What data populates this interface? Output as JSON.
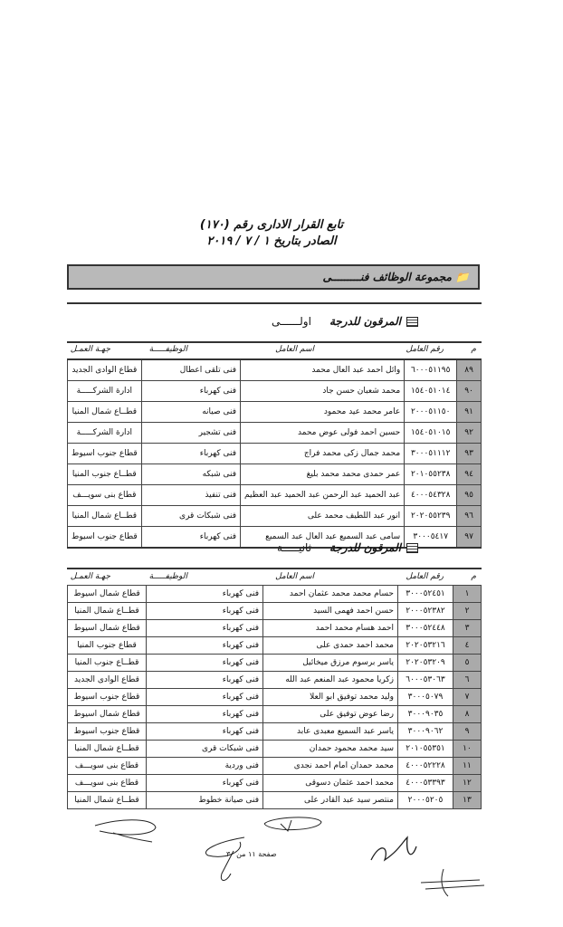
{
  "header": {
    "line1": "تابع القرار الادارى رقم (١٧٠)",
    "line2": "الصادر بتاريخ ١ / ٧ / ٢٠١٩"
  },
  "group_band": {
    "icon": "folder-icon",
    "label": "مجموعة الوظائف فنـــــــــى"
  },
  "columns": {
    "m": "م",
    "number": "رقم العامل",
    "name": "اسم العامل",
    "job": "الوظيفـــــة",
    "dept": "جهـة العمـل"
  },
  "sections": [
    {
      "title": "المرقون للدرجة",
      "grade": "اولــــــى",
      "icon": "list-icon",
      "rows": [
        {
          "m": "٨٩",
          "number": "٦٠٠٠٥١١٩٥",
          "name": "وائل احمد عبد العال محمد",
          "job": "فنى تلقى اعطال",
          "dept": "قطاع الوادى الجديد"
        },
        {
          "m": "٩٠",
          "number": "١٥٤٠٥١٠١٤",
          "name": "محمد شعبان حسن جاد",
          "job": "فنى كهرباء",
          "dept": "ادارة الشركـــــة"
        },
        {
          "m": "٩١",
          "number": "٢٠٠٠٥١١٥٠",
          "name": "عامر محمد عيد محمود",
          "job": "فنى صيانه",
          "dept": "قطــاع شمال المنيا"
        },
        {
          "m": "٩٢",
          "number": "١٥٤٠٥١٠١٥",
          "name": "حسين احمد فولى عوض محمد",
          "job": "فنى تشجير",
          "dept": "ادارة الشركـــــة"
        },
        {
          "m": "٩٣",
          "number": "٣٠٠٠٥١١١٢",
          "name": "محمد جمال زكى محمد فراج",
          "job": "فنى كهرباء",
          "dept": "قطاع جنوب اسيوط"
        },
        {
          "m": "٩٤",
          "number": "٢٠١٠٥٥٢٣٨",
          "name": "عمر حمدى محمد محمد بليغ",
          "job": "فنى شبكه",
          "dept": "قطــاع جنوب المنيا"
        },
        {
          "m": "٩٥",
          "number": "٤٠٠٠٥٤٣٢٨",
          "name": "عبد الحميد عبد الرحمن عبد الحميد عبد العظيم",
          "job": "فنى تنفيذ",
          "dept": "قطاع بنى سويـــف"
        },
        {
          "m": "٩٦",
          "number": "٢٠٢٠٥٥٢٣٩",
          "name": "انور عبد اللطيف محمد على",
          "job": "فنى شبكات قرى",
          "dept": "قطــاع شمال المنيا"
        },
        {
          "m": "٩٧",
          "number": "٣٠٠٠٥٤١٧",
          "name": "سامى عبد السميع عبد العال عبد السميع",
          "job": "فنى كهرباء",
          "dept": "قطاع جنوب اسيوط"
        }
      ]
    },
    {
      "title": "المرقون للدرجة",
      "grade": "ثانيـــــة",
      "icon": "list-icon",
      "rows": [
        {
          "m": "١",
          "number": "٣٠٠٠٥٢٤٥١",
          "name": "حسام محمد محمد عثمان احمد",
          "job": "فنى كهرباء",
          "dept": "قطاع شمال اسيوط"
        },
        {
          "m": "٢",
          "number": "٢٠٠٠٥٢٣٨٢",
          "name": "حسن احمد فهمى السيد",
          "job": "فنى كهرباء",
          "dept": "قطــاع شمال المنيا"
        },
        {
          "m": "٣",
          "number": "٣٠٠٠٥٢٤٤٨",
          "name": "احمد هسام محمد احمد",
          "job": "فنى كهرباء",
          "dept": "قطاع شمال اسيوط"
        },
        {
          "m": "٤",
          "number": "٢٠٢٠٥٣٢١٦",
          "name": "محمد احمد حمدى على",
          "job": "فنى كهرباء",
          "dept": "قطاع جنوب المنيا"
        },
        {
          "m": "٥",
          "number": "٢٠٢٠٥٣٢٠٩",
          "name": "ياسر برسوم مرزق ميخائيل",
          "job": "فنى كهرباء",
          "dept": "قطــاع جنوب المنيا"
        },
        {
          "m": "٦",
          "number": "٦٠٠٠٥٣٠٦٣",
          "name": "زكريا محمود عبد المنعم عبد الله",
          "job": "فنى كهرباء",
          "dept": "قطاع الوادى الجديد"
        },
        {
          "m": "٧",
          "number": "٣٠٠٠٥٠٧٩",
          "name": "وليد محمد توفيق ابو العلا",
          "job": "فنى كهرباء",
          "dept": "قطاع جنوب اسيوط"
        },
        {
          "m": "٨",
          "number": "٣٠٠٠٩٠٣٥",
          "name": "رضا عوض توفيق على",
          "job": "فنى كهرباء",
          "dept": "قطاع شمال اسيوط"
        },
        {
          "m": "٩",
          "number": "٣٠٠٠٩٠٦٢",
          "name": "ياسر عبد السميع معبدى عابد",
          "job": "فنى كهرباء",
          "dept": "قطاع جنوب اسيوط"
        },
        {
          "m": "١٠",
          "number": "٢٠١٠٥٥٣٥١",
          "name": "سيد محمد محمود حمدان",
          "job": "فنى شبكات قرى",
          "dept": "قطــاع شمال المنيا"
        },
        {
          "m": "١١",
          "number": "٤٠٠٠٥٢٢٢٨",
          "name": "محمد حمدان امام احمد نجدى",
          "job": "فنى وردية",
          "dept": "قطاع بنى سويـــف"
        },
        {
          "m": "١٢",
          "number": "٤٠٠٠٥٣٣٩٣",
          "name": "محمد احمد عثمان دسوقى",
          "job": "فنى كهرباء",
          "dept": "قطاع بنى سويـــف"
        },
        {
          "m": "١٣",
          "number": "٢٠٠٠٥٢٠٥",
          "name": "منتصر سيد عبد القادر على",
          "job": "فنى صيانة خطوط",
          "dept": "قطــاع شمال المنيا"
        }
      ]
    }
  ],
  "footer": {
    "page": "صفحة ١١ من ٣٠"
  }
}
